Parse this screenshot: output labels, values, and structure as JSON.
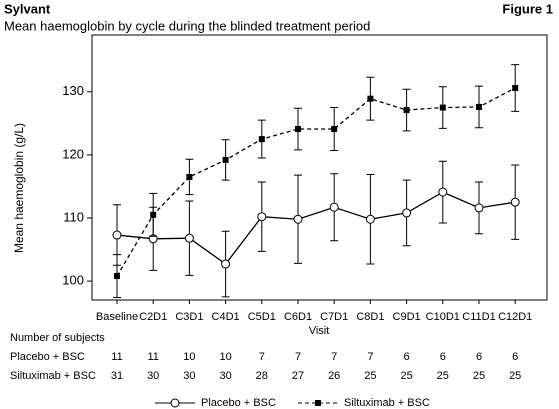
{
  "header": {
    "brand": "Sylvant",
    "figure": "Figure 1"
  },
  "chart_data": {
    "type": "line",
    "title": "Mean haemoglobin by cycle during the blinded treatment period",
    "x_label": "Visit",
    "y_label": "Mean haemoglobin (g/L)",
    "categories": [
      "Baseline",
      "C2D1",
      "C3D1",
      "C4D1",
      "C5D1",
      "C6D1",
      "C7D1",
      "C8D1",
      "C9D1",
      "C10D1",
      "C11D1",
      "C12D1"
    ],
    "ylim": [
      97,
      139
    ],
    "yticks": [
      100,
      110,
      120,
      130
    ],
    "series": [
      {
        "name": "Placebo + BSC",
        "color": "#000000",
        "marker": "circle",
        "line_style": "solid",
        "values": [
          107.3,
          106.7,
          106.8,
          102.7,
          110.2,
          109.8,
          111.7,
          109.8,
          110.8,
          114.1,
          111.6,
          112.5
        ],
        "errors": [
          4.8,
          5.0,
          5.9,
          5.2,
          5.5,
          7.0,
          5.3,
          7.1,
          5.2,
          4.9,
          4.1,
          5.9
        ]
      },
      {
        "name": "Siltuximab + BSC",
        "color": "#000000",
        "marker": "square",
        "line_style": "dashed",
        "values": [
          100.8,
          110.5,
          116.5,
          119.2,
          122.5,
          124.1,
          124.1,
          128.9,
          127.1,
          127.5,
          127.6,
          130.6
        ],
        "errors": [
          3.4,
          3.4,
          2.8,
          3.2,
          3.0,
          3.3,
          3.4,
          3.4,
          3.3,
          3.3,
          3.3,
          3.7
        ]
      }
    ],
    "subjects_table": {
      "title": "Number of subjects",
      "rows": [
        {
          "label": "Placebo + BSC",
          "values": [
            "11",
            "11",
            "10",
            "10",
            "7",
            "7",
            "7",
            "7",
            "6",
            "6",
            "6",
            "6"
          ]
        },
        {
          "label": "Siltuximab + BSC",
          "values": [
            "31",
            "30",
            "30",
            "30",
            "28",
            "27",
            "26",
            "25",
            "25",
            "25",
            "25",
            "25"
          ]
        }
      ]
    }
  }
}
